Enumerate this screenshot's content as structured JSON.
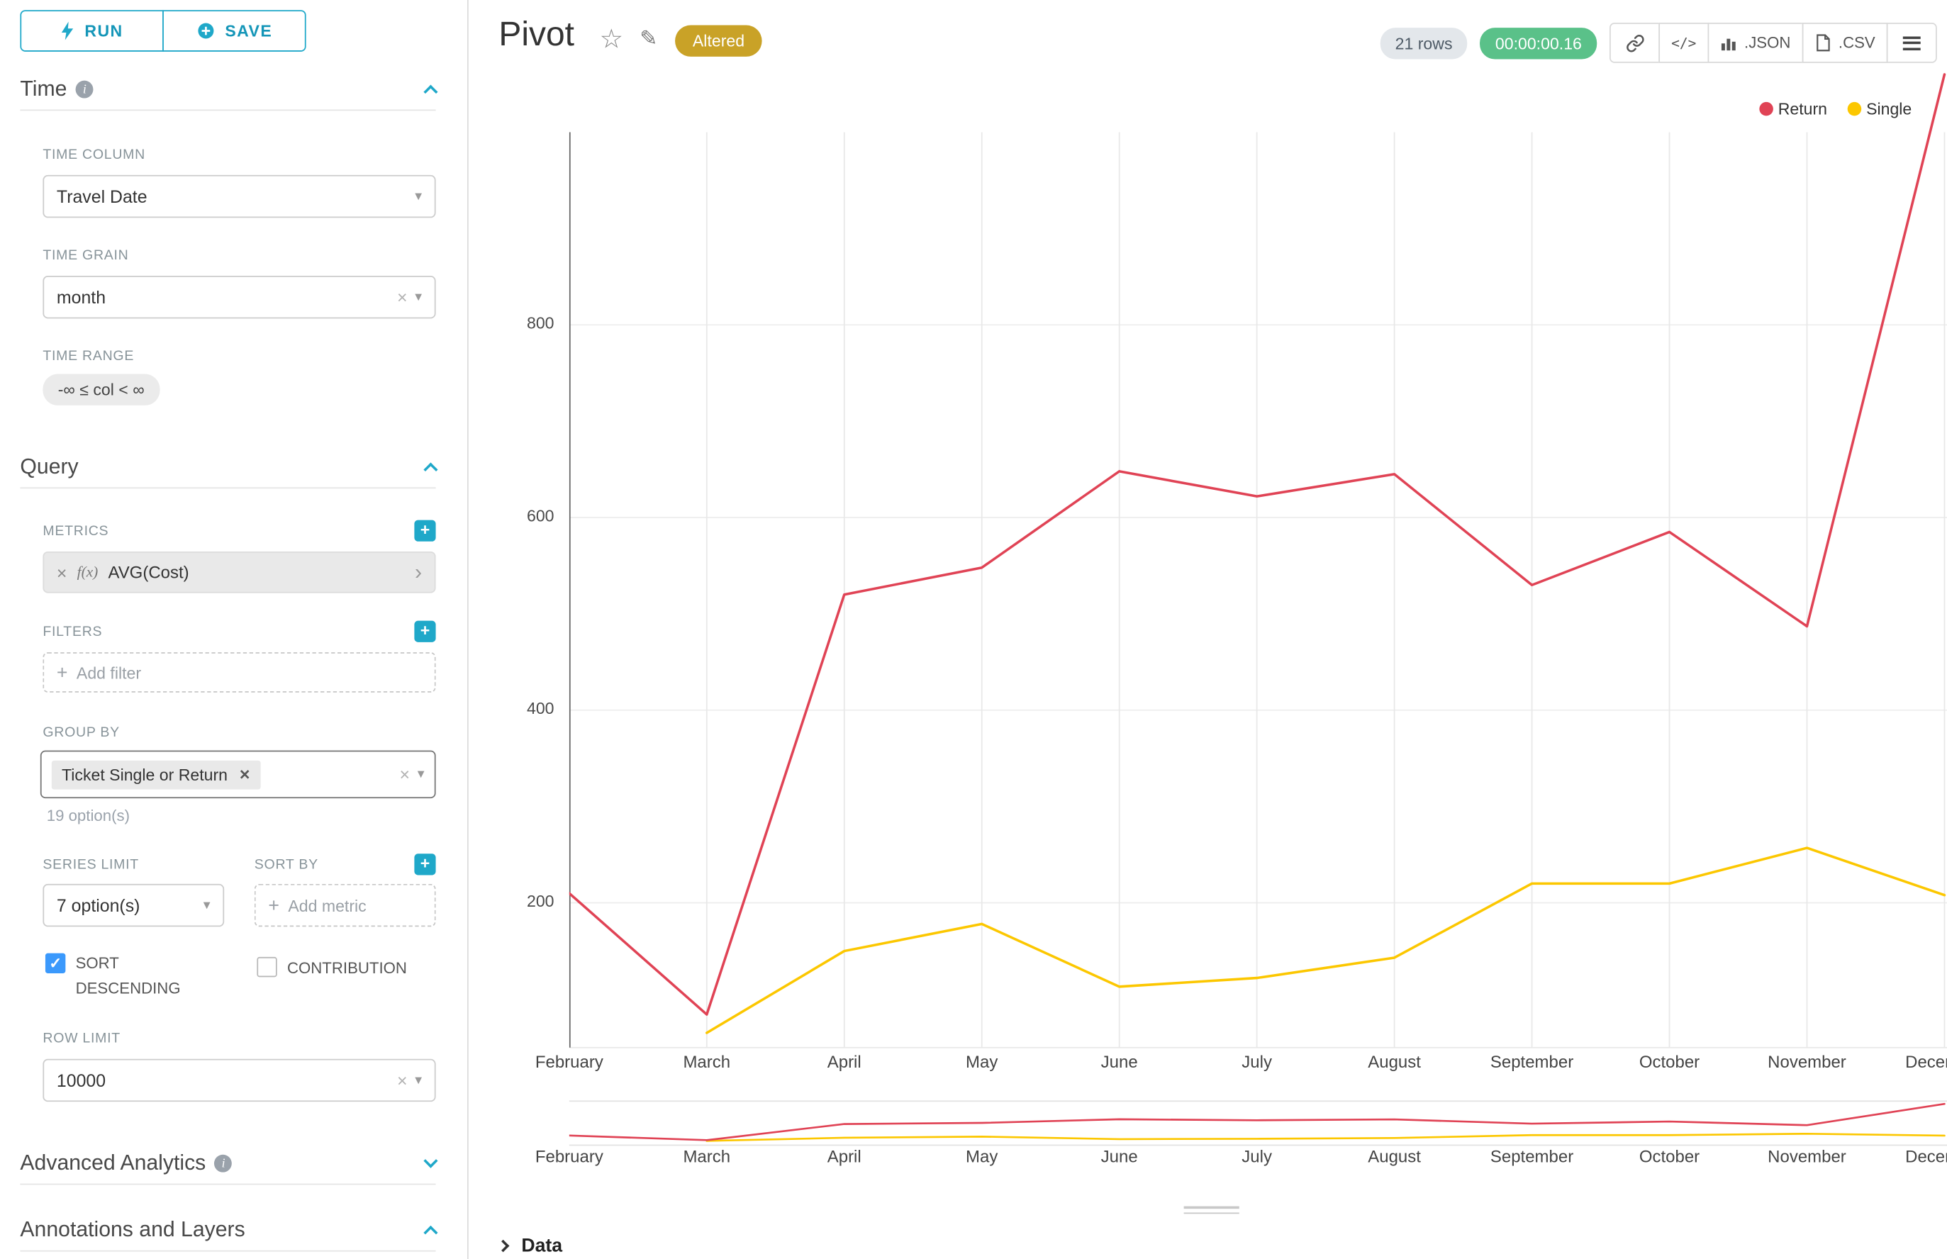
{
  "accent": {
    "primary": "#1FA8C9",
    "checkbox": "#3B99FC",
    "altered_badge_bg": "#C9A227",
    "timer_badge_bg": "#5AC189"
  },
  "toolbar": {
    "run": "RUN",
    "save": "SAVE"
  },
  "controls": {
    "time": {
      "title": "Time",
      "time_column_label": "TIME COLUMN",
      "time_column_value": "Travel Date",
      "time_grain_label": "TIME GRAIN",
      "time_grain_value": "month",
      "time_range_label": "TIME RANGE",
      "time_range_value": "-∞ ≤ col < ∞"
    },
    "query": {
      "title": "Query",
      "metrics_label": "METRICS",
      "metric_fx": "f(x)",
      "metric_value": "AVG(Cost)",
      "filters_label": "FILTERS",
      "add_filter_placeholder": "Add filter",
      "group_by_label": "GROUP BY",
      "group_by_tag": "Ticket Single or Return",
      "group_by_hint": "19 option(s)",
      "series_limit_label": "SERIES LIMIT",
      "series_limit_value": "7 option(s)",
      "sort_by_label": "SORT BY",
      "add_metric_placeholder": "Add metric",
      "sort_descending_label": "SORT DESCENDING",
      "contribution_label": "CONTRIBUTION",
      "row_limit_label": "ROW LIMIT",
      "row_limit_value": "10000"
    },
    "advanced_analytics_title": "Advanced Analytics",
    "annotations_title": "Annotations and Layers"
  },
  "header": {
    "title": "Pivot",
    "altered_badge": "Altered",
    "rows_badge": "21 rows",
    "timer_badge": "00:00:00.16",
    "code_button": "</>",
    "json_button": ".JSON",
    "csv_button": ".CSV"
  },
  "data_panel": {
    "title": "Data"
  },
  "chart_data": {
    "type": "line",
    "title": "Pivot",
    "x": [
      "February",
      "March",
      "April",
      "May",
      "June",
      "July",
      "August",
      "September",
      "October",
      "November",
      "December"
    ],
    "series": [
      {
        "name": "Return",
        "color": "#E04355",
        "values": [
          210,
          84,
          520,
          548,
          648,
          622,
          645,
          530,
          585,
          487,
          1060
        ]
      },
      {
        "name": "Single",
        "color": "#FCC700",
        "values": [
          null,
          65,
          150,
          178,
          113,
          122,
          143,
          220,
          220,
          257,
          208
        ]
      }
    ],
    "yticks": [
      200,
      400,
      600,
      800
    ],
    "ylim": [
      50,
      1000
    ],
    "xlabel": "",
    "ylabel": "",
    "grid": true,
    "legend_position": "top-right",
    "has_range_brush": true
  }
}
